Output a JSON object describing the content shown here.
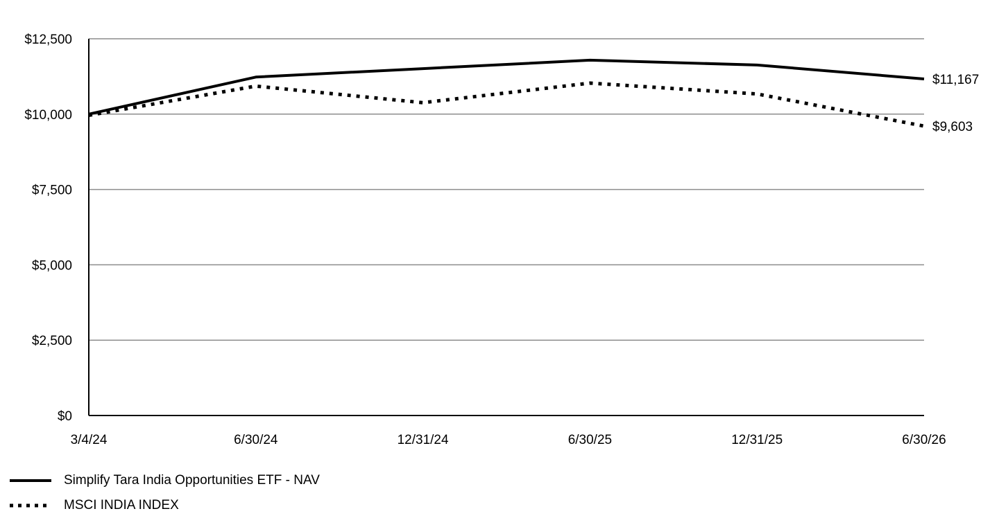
{
  "chart_data": {
    "type": "line",
    "title": "",
    "xlabel": "",
    "ylabel": "",
    "x": [
      "3/4/24",
      "6/30/24",
      "12/31/24",
      "6/30/25",
      "12/31/25",
      "6/30/26"
    ],
    "yticks": [
      "$0",
      "$2,500",
      "$5,000",
      "$7,500",
      "$10,000",
      "$12,500"
    ],
    "ytick_values": [
      0,
      2500,
      5000,
      7500,
      10000,
      12500
    ],
    "ylim": [
      0,
      12500
    ],
    "grid": true,
    "legend_position": "bottom-left",
    "series": [
      {
        "name": "Simplify Tara India Opportunities ETF - NAV",
        "style": "solid",
        "color": "#000000",
        "values": [
          10000,
          11230,
          11510,
          11790,
          11630,
          11167
        ],
        "end_label": "$11,167"
      },
      {
        "name": "MSCI INDIA INDEX",
        "style": "dotted",
        "color": "#000000",
        "values": [
          9960,
          10930,
          10380,
          11030,
          10670,
          9603
        ],
        "end_label": "$9,603"
      }
    ]
  }
}
